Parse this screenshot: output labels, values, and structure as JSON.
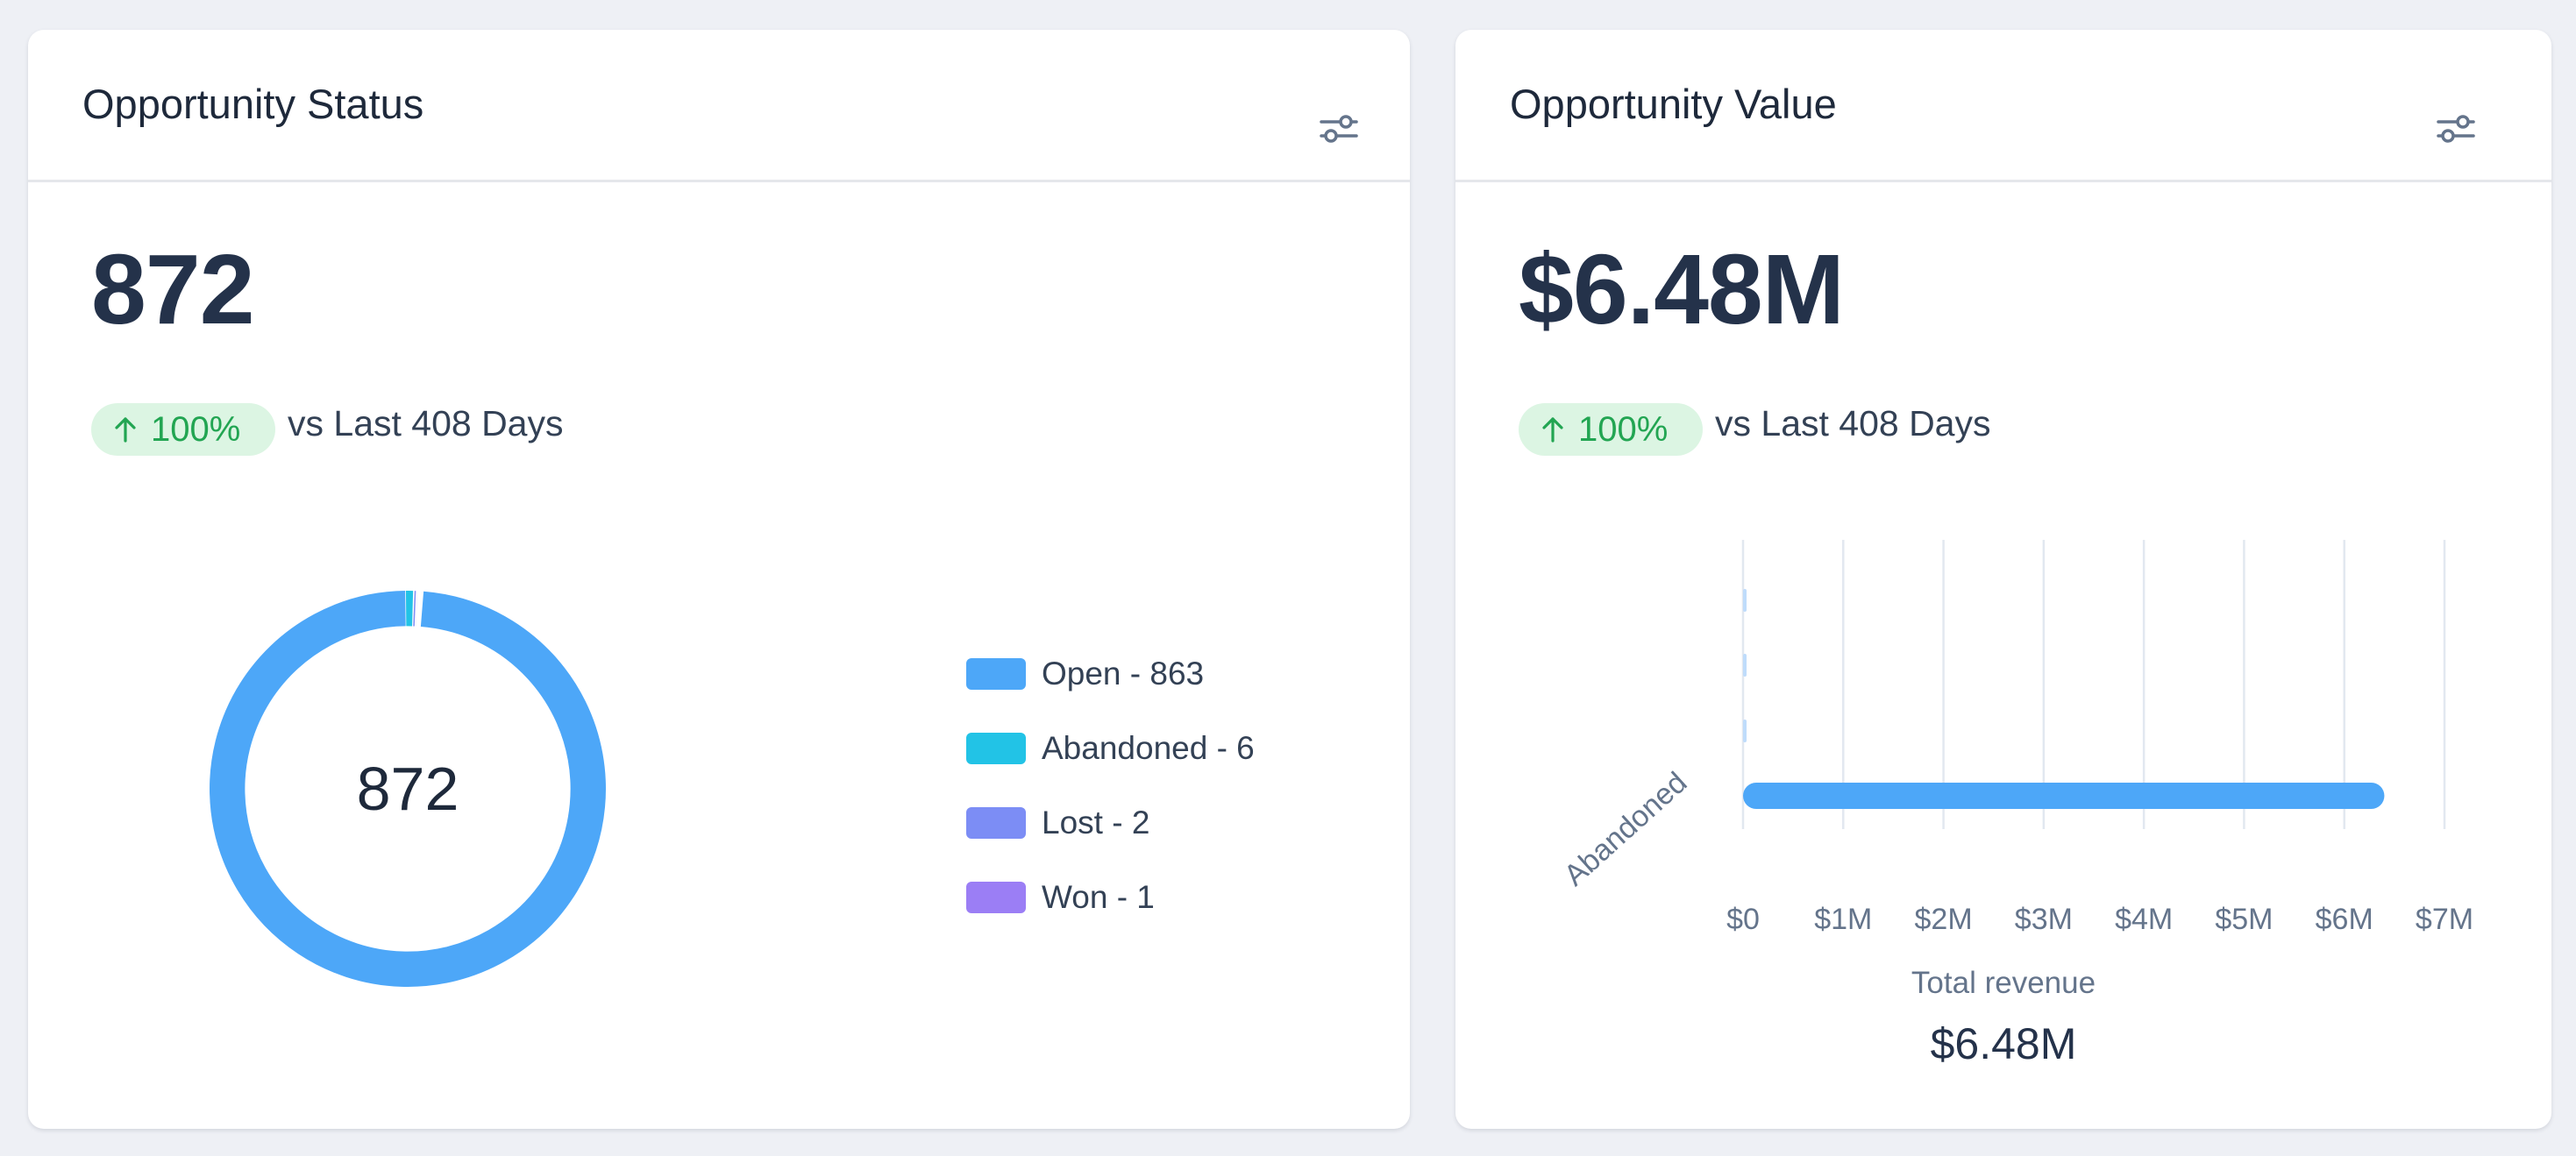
{
  "status_card": {
    "title": "Opportunity Status",
    "total": "872",
    "delta": "100%",
    "delta_caption": "vs Last 408 Days",
    "donut_center": "872"
  },
  "value_card": {
    "title": "Opportunity Value",
    "total": "$6.48M",
    "delta": "100%",
    "delta_caption": "vs Last 408 Days",
    "total_label": "Total revenue",
    "total_value": "$6.48M"
  },
  "icons": {
    "filter": "sliders-icon",
    "delta": "arrow-up-icon"
  },
  "colors": {
    "open": "#4da7f8",
    "abandoned": "#22c3e6",
    "lost": "#7c8df5",
    "won": "#9b7ef5",
    "delta_bg": "#dcf5e3",
    "delta_text": "#22a552"
  },
  "chart_data": [
    {
      "type": "pie",
      "variant": "donut",
      "legend_position": "right",
      "legend": [
        "Open - 863",
        "Abandoned - 6",
        "Lost - 2",
        "Won - 1"
      ],
      "series": [
        {
          "name": "Open",
          "value": 863,
          "color": "#4da7f8"
        },
        {
          "name": "Abandoned",
          "value": 6,
          "color": "#22c3e6"
        },
        {
          "name": "Lost",
          "value": 2,
          "color": "#7c8df5"
        },
        {
          "name": "Won",
          "value": 1,
          "color": "#9b7ef5"
        }
      ],
      "center_label": "872"
    },
    {
      "type": "bar",
      "orientation": "horizontal",
      "categories": [
        "",
        "",
        "",
        "Abandoned"
      ],
      "values": [
        0.001,
        0.001,
        0.002,
        6.4
      ],
      "value_unit": "M",
      "xlim": [
        0,
        7
      ],
      "x_ticks": [
        "$0",
        "$1M",
        "$2M",
        "$3M",
        "$4M",
        "$5M",
        "$6M",
        "$7M"
      ],
      "grid": "vertical",
      "color": "#4da7f8"
    }
  ]
}
